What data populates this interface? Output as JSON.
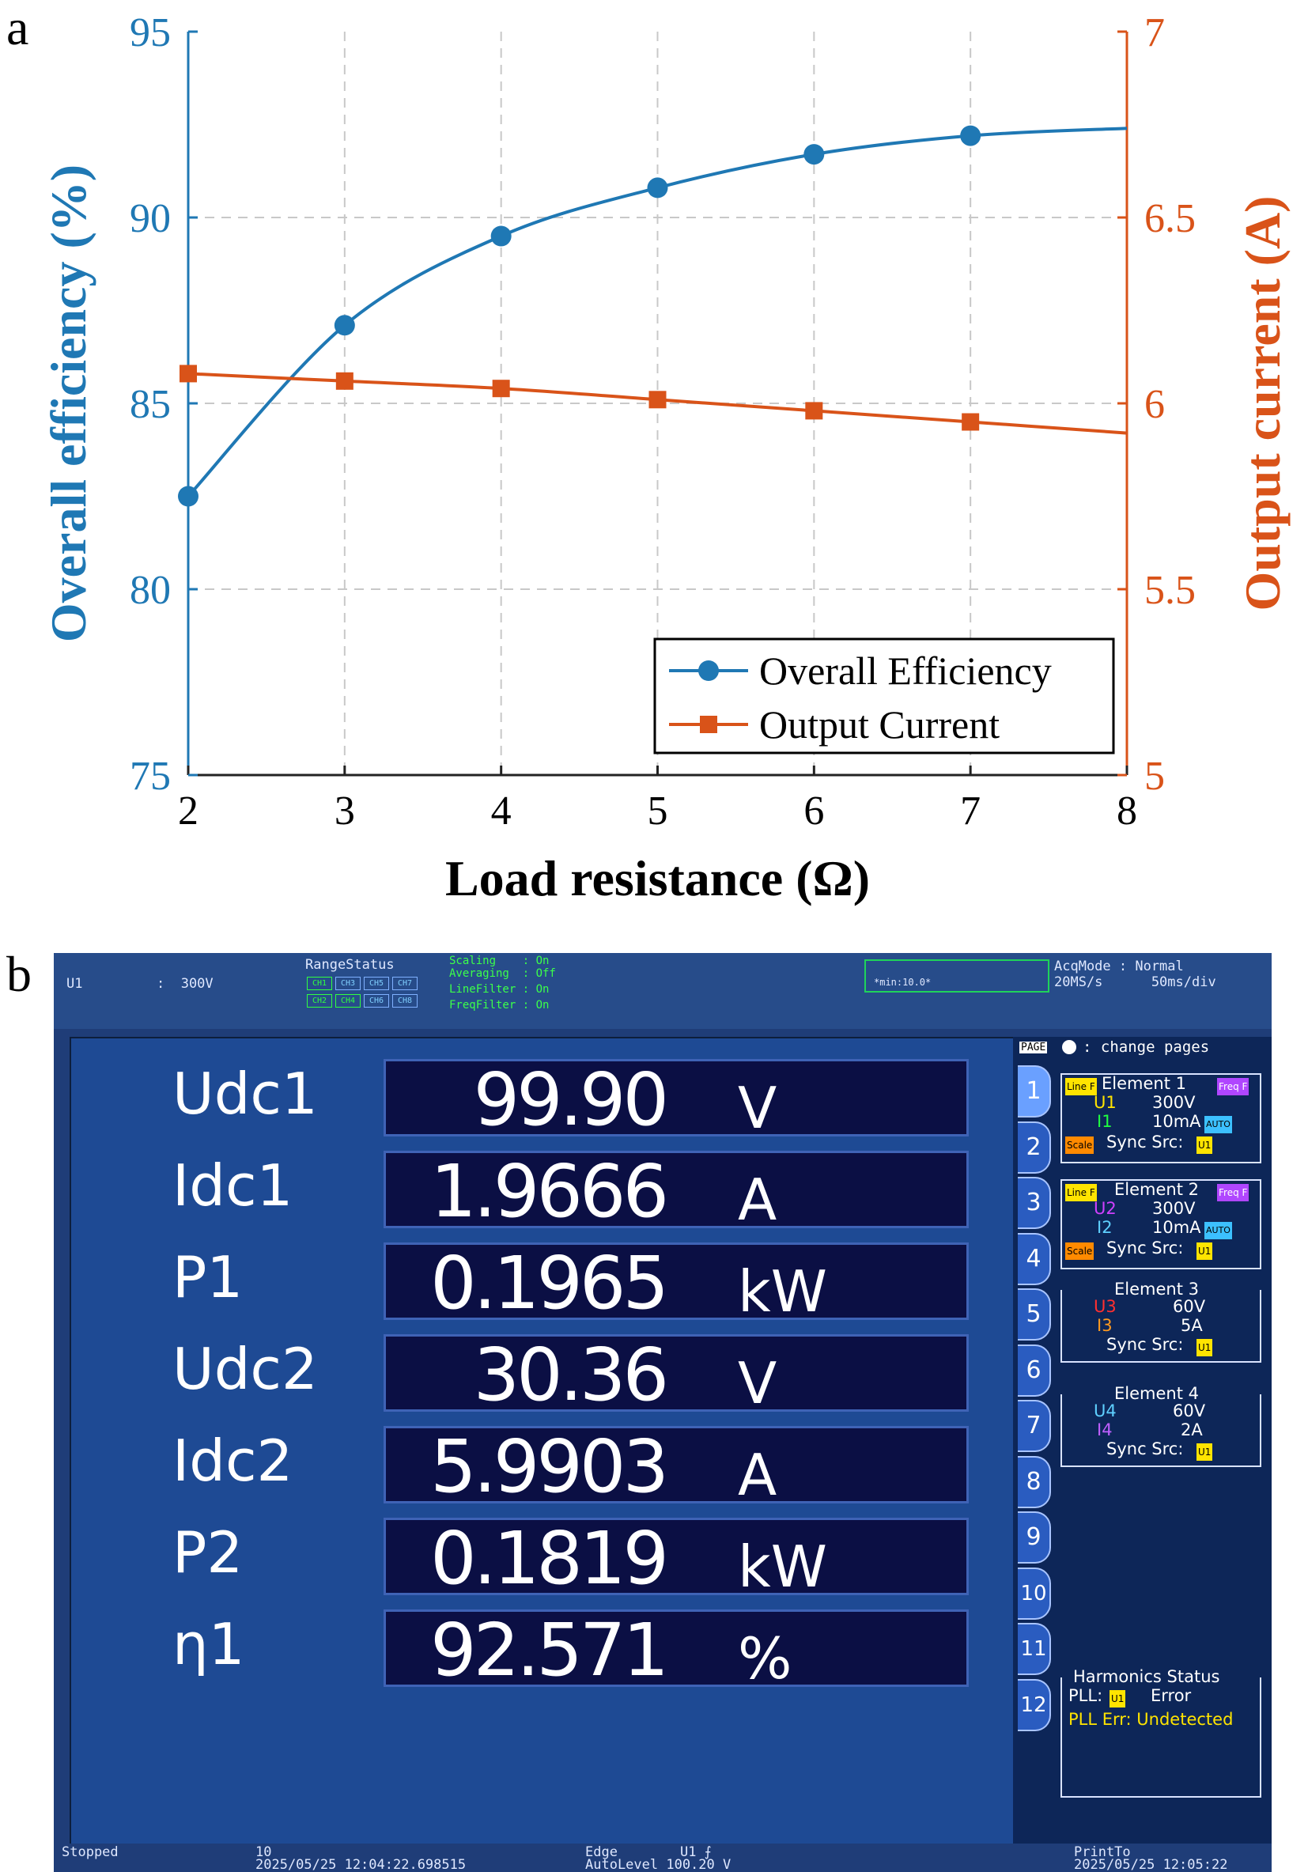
{
  "panel_a_letter": "a",
  "panel_b_letter": "b",
  "chart_data": {
    "type": "line",
    "xlabel": "Load resistance (Ω)",
    "ylabel_left": "Overall efficiency (%)",
    "ylabel_right": "Output current (A)",
    "xlim": [
      2,
      8
    ],
    "ylim_left": [
      75,
      95
    ],
    "ylim_right": [
      5,
      7
    ],
    "x_ticks": [
      "2",
      "3",
      "4",
      "5",
      "6",
      "7",
      "8"
    ],
    "y_ticks_left": [
      "75",
      "80",
      "85",
      "90",
      "95"
    ],
    "y_ticks_right": [
      "5",
      "5.5",
      "6",
      "6.5",
      "7"
    ],
    "grid": true,
    "legend_position": "bottom-right",
    "colors": {
      "efficiency": "#1f78b4",
      "current": "#d95319"
    },
    "series": [
      {
        "name": "Overall Efficiency",
        "axis": "left",
        "marker": "circle",
        "x": [
          2,
          3,
          4,
          5,
          6,
          7,
          8
        ],
        "y": [
          82.5,
          87.1,
          89.5,
          90.8,
          91.7,
          92.2,
          92.4
        ],
        "marked": [
          true,
          true,
          true,
          true,
          true,
          true,
          false
        ]
      },
      {
        "name": "Output Current",
        "axis": "right",
        "marker": "square",
        "x": [
          2,
          3,
          4,
          5,
          6,
          7,
          8
        ],
        "y": [
          6.08,
          6.06,
          6.04,
          6.01,
          5.98,
          5.95,
          5.92
        ],
        "marked": [
          true,
          true,
          true,
          true,
          true,
          true,
          false
        ]
      }
    ]
  },
  "meter": {
    "top": {
      "u1_label": "U1",
      "u1_range": ":  300V",
      "range_status": "RangeStatus",
      "ch_row1": [
        "CH1",
        "CH3",
        "CH5",
        "CH7"
      ],
      "ch_row2": [
        "CH2",
        "CH4",
        "CH6",
        "CH8"
      ],
      "scaling": "Scaling    : On",
      "averaging": "Averaging  : Off",
      "line_filter": "LineFilter : On",
      "freq_filter": "FreqFilter : On",
      "min_label": "*min:10.0*",
      "acq_mode": "AcqMode : Normal",
      "sample_rate": "20MS/s      50ms/div"
    },
    "rows": [
      {
        "label": "Udc1",
        "value": "99.90",
        "unit": "V"
      },
      {
        "label": "Idc1",
        "value": "1.9666",
        "unit": "A"
      },
      {
        "label": "P1",
        "value": "0.1965",
        "unit": "kW"
      },
      {
        "label": "Udc2",
        "value": "30.36",
        "unit": "V"
      },
      {
        "label": "Idc2",
        "value": "5.9903",
        "unit": "A"
      },
      {
        "label": "P2",
        "value": "0.1819",
        "unit": "kW"
      },
      {
        "label": "η1",
        "value": "92.571",
        "unit": "%"
      }
    ],
    "dashes": "-----",
    "side": {
      "page_label": "PAGE",
      "change_pages": ": change pages",
      "pages": [
        "1",
        "2",
        "3",
        "4",
        "5",
        "6",
        "7",
        "8",
        "9",
        "10",
        "11",
        "12"
      ],
      "elements": [
        {
          "title": "Element 1",
          "tag": "Line F",
          "tag2": "Freq F",
          "u": "U1",
          "u_range": "300V",
          "i": "I1",
          "i_range": "10mA",
          "i_tag": "AUTO",
          "sync": "Sync Src:",
          "sync_src": "U1",
          "scale": "Scale"
        },
        {
          "title": "Element 2",
          "tag": "Line F",
          "tag2": "Freq F",
          "u": "U2",
          "u_range": "300V",
          "i": "I2",
          "i_range": "10mA",
          "i_tag": "AUTO",
          "sync": "Sync Src:",
          "sync_src": "U1",
          "scale": "Scale"
        },
        {
          "title": "Element 3",
          "u": "U3",
          "u_range": "60V",
          "i": "I3",
          "i_range": "5A",
          "sync": "Sync Src:",
          "sync_src": "U1"
        },
        {
          "title": "Element 4",
          "u": "U4",
          "u_range": "60V",
          "i": "I4",
          "i_range": "2A",
          "sync": "Sync Src:",
          "sync_src": "U1"
        }
      ],
      "harmonics_title": "Harmonics Status",
      "pll": "PLL:",
      "pll_src": "U1",
      "pll_state": "Error",
      "pll_err": "PLL Err: Undetected"
    },
    "bottom": {
      "status": "Stopped",
      "index": "10",
      "timestamp1": "2025/05/25 12:04:22.698515",
      "trigger": "Edge",
      "trigger_src": "U1 ⨍",
      "autolevel": "AutoLevel 100.20 V",
      "print": "PrintTo",
      "timestamp2": "2025/05/25 12:05:22"
    }
  }
}
